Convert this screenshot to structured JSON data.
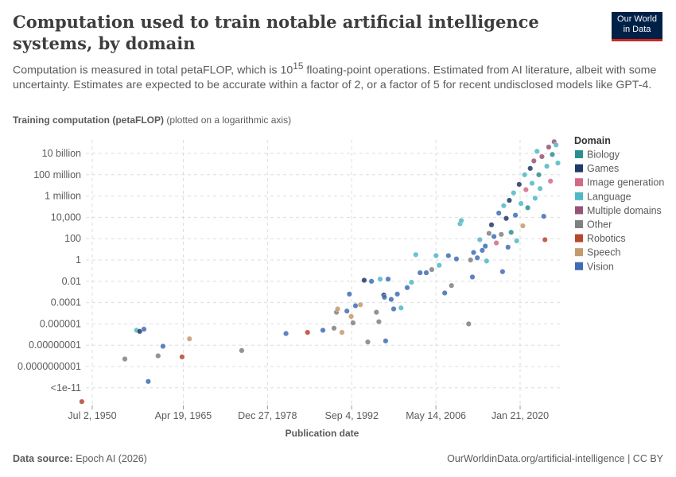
{
  "header": {
    "title": "Computation used to train notable artificial intelligence systems, by domain",
    "subtitle_pre": "Computation is measured in total petaFLOP, which is 10",
    "subtitle_sup": "15",
    "subtitle_post": " floating-point operations. Estimated from AI literature, albeit with some uncertainty. Estimates are expected to be accurate within a factor of 2, or a factor of 5 for recent undisclosed models like GPT-4.",
    "logo_line1": "Our World",
    "logo_line2": "in Data"
  },
  "footer": {
    "source_label": "Data source:",
    "source_value": " Epoch AI (2026)",
    "right": "OurWorldinData.org/artificial-intelligence | CC BY"
  },
  "colors": {
    "Biology": "#2a8f8f",
    "Games": "#1f3a66",
    "Image generation": "#d26a86",
    "Language": "#4fb8c4",
    "Multiple domains": "#98527a",
    "Other": "#808080",
    "Robotics": "#b5482f",
    "Speech": "#c49a6c",
    "Vision": "#3e6db5"
  },
  "chart_data": {
    "type": "scatter",
    "title": "Computation used to train notable artificial intelligence systems, by domain",
    "ylabel_bold": "Training computation (petaFLOP)",
    "ylabel_note": " (plotted on a logarithmic axis)",
    "xlabel": "Publication date",
    "y_scale": "log",
    "y_ticks": [
      {
        "exp": 10,
        "label": "10 billion"
      },
      {
        "exp": 8,
        "label": "100 million"
      },
      {
        "exp": 6,
        "label": "1 million"
      },
      {
        "exp": 4,
        "label": "10,000"
      },
      {
        "exp": 2,
        "label": "100"
      },
      {
        "exp": 0,
        "label": "1"
      },
      {
        "exp": -2,
        "label": "0.01"
      },
      {
        "exp": -4,
        "label": "0.0001"
      },
      {
        "exp": -6,
        "label": "0.000001"
      },
      {
        "exp": -8,
        "label": "0.00000001"
      },
      {
        "exp": -10,
        "label": "0.0000000001"
      },
      {
        "exp": -12,
        "label": "<1e-11"
      }
    ],
    "x_ticks": [
      {
        "year": 1950.5,
        "label": "Jul 2, 1950"
      },
      {
        "year": 1965.3,
        "label": "Apr 19, 1965"
      },
      {
        "year": 1978.98,
        "label": "Dec 27, 1978"
      },
      {
        "year": 1992.68,
        "label": "Sep 4, 1992"
      },
      {
        "year": 2006.37,
        "label": "May 14, 2006"
      },
      {
        "year": 2020.06,
        "label": "Jan 21, 2020"
      }
    ],
    "xlim": [
      1948.6,
      2026.5
    ],
    "ylim": [
      -13.3,
      11.1
    ],
    "legend_title": "Domain",
    "legend": [
      "Biology",
      "Games",
      "Image generation",
      "Language",
      "Multiple domains",
      "Other",
      "Robotics",
      "Speech",
      "Vision"
    ],
    "points": [
      [
        1948.8,
        -13.3,
        "Robotics"
      ],
      [
        1955.8,
        -9.3,
        "Other"
      ],
      [
        1957.7,
        -6.6,
        "Language"
      ],
      [
        1958.2,
        -6.7,
        "Games"
      ],
      [
        1958.9,
        -6.5,
        "Vision"
      ],
      [
        1959.6,
        -11.4,
        "Vision"
      ],
      [
        1961.2,
        -9.0,
        "Other"
      ],
      [
        1962.0,
        -8.1,
        "Vision"
      ],
      [
        1965.1,
        -9.1,
        "Robotics"
      ],
      [
        1966.3,
        -7.4,
        "Speech"
      ],
      [
        1974.8,
        -8.5,
        "Other"
      ],
      [
        1982.0,
        -6.9,
        "Vision"
      ],
      [
        1985.5,
        -6.8,
        "Robotics"
      ],
      [
        1988.0,
        -6.6,
        "Vision"
      ],
      [
        1989.8,
        -6.4,
        "Other"
      ],
      [
        1990.2,
        -4.9,
        "Other"
      ],
      [
        1990.4,
        -4.6,
        "Speech"
      ],
      [
        1991.1,
        -6.8,
        "Speech"
      ],
      [
        1991.9,
        -4.8,
        "Vision"
      ],
      [
        1992.3,
        -3.2,
        "Vision"
      ],
      [
        1992.6,
        -5.3,
        "Speech"
      ],
      [
        1992.9,
        -5.9,
        "Other"
      ],
      [
        1993.3,
        -4.3,
        "Vision"
      ],
      [
        1994.1,
        -4.2,
        "Speech"
      ],
      [
        1994.7,
        -1.9,
        "Games"
      ],
      [
        1995.3,
        -7.7,
        "Other"
      ],
      [
        1995.9,
        -2.0,
        "Vision"
      ],
      [
        1996.7,
        -4.9,
        "Other"
      ],
      [
        1997.1,
        -5.8,
        "Other"
      ],
      [
        1997.3,
        -1.8,
        "Language"
      ],
      [
        1997.9,
        -3.3,
        "Games"
      ],
      [
        1998.0,
        -3.5,
        "Vision"
      ],
      [
        1998.2,
        -7.6,
        "Vision"
      ],
      [
        1998.6,
        -1.8,
        "Vision"
      ],
      [
        1999.1,
        -3.7,
        "Vision"
      ],
      [
        1999.5,
        -4.6,
        "Vision"
      ],
      [
        2000.1,
        -3.2,
        "Vision"
      ],
      [
        2000.7,
        -4.5,
        "Language"
      ],
      [
        2001.7,
        -2.6,
        "Vision"
      ],
      [
        2002.4,
        -2.1,
        "Language"
      ],
      [
        2003.1,
        0.5,
        "Language"
      ],
      [
        2003.8,
        -1.2,
        "Vision"
      ],
      [
        2004.8,
        -1.2,
        "Vision"
      ],
      [
        2005.7,
        -0.9,
        "Other"
      ],
      [
        2006.4,
        0.4,
        "Language"
      ],
      [
        2006.9,
        -0.5,
        "Language"
      ],
      [
        2007.8,
        -3.1,
        "Vision"
      ],
      [
        2008.4,
        0.4,
        "Vision"
      ],
      [
        2008.9,
        -2.4,
        "Other"
      ],
      [
        2009.7,
        0.1,
        "Vision"
      ],
      [
        2010.3,
        3.4,
        "Language"
      ],
      [
        2010.5,
        3.7,
        "Language"
      ],
      [
        2011.7,
        -6.0,
        "Other"
      ],
      [
        2012.0,
        0.0,
        "Other"
      ],
      [
        2012.3,
        -1.6,
        "Vision"
      ],
      [
        2012.5,
        0.7,
        "Vision"
      ],
      [
        2013.1,
        0.2,
        "Vision"
      ],
      [
        2013.5,
        1.9,
        "Language"
      ],
      [
        2013.9,
        0.9,
        "Vision"
      ],
      [
        2014.4,
        1.3,
        "Vision"
      ],
      [
        2014.6,
        -0.1,
        "Language"
      ],
      [
        2015.0,
        2.5,
        "Other"
      ],
      [
        2015.4,
        3.3,
        "Games"
      ],
      [
        2015.8,
        2.2,
        "Vision"
      ],
      [
        2016.2,
        1.6,
        "Image generation"
      ],
      [
        2016.6,
        4.4,
        "Vision"
      ],
      [
        2017.0,
        2.4,
        "Other"
      ],
      [
        2017.2,
        -1.1,
        "Vision"
      ],
      [
        2017.4,
        5.1,
        "Language"
      ],
      [
        2017.8,
        3.9,
        "Games"
      ],
      [
        2018.1,
        1.2,
        "Vision"
      ],
      [
        2018.3,
        5.6,
        "Games"
      ],
      [
        2018.6,
        2.6,
        "Biology"
      ],
      [
        2019.0,
        6.3,
        "Language"
      ],
      [
        2019.3,
        4.2,
        "Vision"
      ],
      [
        2019.5,
        1.8,
        "Language"
      ],
      [
        2019.9,
        7.1,
        "Games"
      ],
      [
        2020.2,
        5.3,
        "Language"
      ],
      [
        2020.5,
        3.2,
        "Speech"
      ],
      [
        2020.8,
        8.0,
        "Language"
      ],
      [
        2021.0,
        6.6,
        "Image generation"
      ],
      [
        2021.3,
        4.9,
        "Biology"
      ],
      [
        2021.7,
        8.6,
        "Games"
      ],
      [
        2022.0,
        7.2,
        "Language"
      ],
      [
        2022.3,
        9.3,
        "Multiple domains"
      ],
      [
        2022.5,
        5.8,
        "Language"
      ],
      [
        2022.8,
        10.2,
        "Language"
      ],
      [
        2023.1,
        8.0,
        "Biology"
      ],
      [
        2023.3,
        6.7,
        "Language"
      ],
      [
        2023.6,
        9.7,
        "Multiple domains"
      ],
      [
        2023.9,
        4.1,
        "Vision"
      ],
      [
        2024.1,
        1.9,
        "Robotics"
      ],
      [
        2024.4,
        8.8,
        "Language"
      ],
      [
        2024.7,
        10.6,
        "Multiple domains"
      ],
      [
        2025.0,
        7.4,
        "Image generation"
      ],
      [
        2025.3,
        9.9,
        "Biology"
      ],
      [
        2025.6,
        11.1,
        "Multiple domains"
      ],
      [
        2025.9,
        10.8,
        "Language"
      ],
      [
        2026.2,
        9.1,
        "Language"
      ]
    ]
  }
}
